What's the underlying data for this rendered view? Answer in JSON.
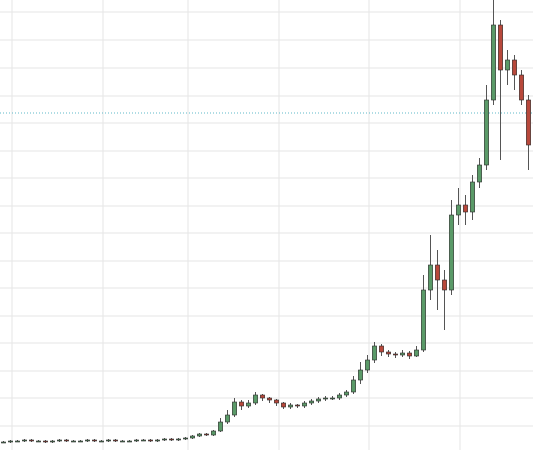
{
  "chart_data": {
    "type": "candlestick",
    "ylim": [
      0,
      450
    ],
    "up_color": "#5a9a68",
    "down_color": "#b8483b",
    "outline_color": "#2b2b2b",
    "price_line": 337,
    "price_line_color": "#5fb8c8",
    "open": [
      8,
      8,
      9,
      9,
      10,
      9,
      9,
      8,
      9,
      10,
      9,
      9,
      9,
      10,
      9,
      9,
      10,
      9,
      9,
      9,
      10,
      10,
      9,
      10,
      11,
      10,
      11,
      12,
      14,
      16,
      15,
      19,
      28,
      35,
      48,
      44,
      47,
      55,
      52,
      50,
      47,
      43,
      45,
      44,
      47,
      49,
      51,
      52,
      52,
      55,
      58,
      70,
      80,
      90,
      104,
      98,
      96,
      95,
      97,
      94,
      100,
      160,
      185,
      170,
      160,
      235,
      245,
      238,
      268,
      285,
      350,
      425,
      380,
      390,
      375,
      350
    ],
    "high": [
      9,
      10,
      10,
      11,
      11,
      10,
      10,
      10,
      11,
      11,
      10,
      10,
      11,
      11,
      10,
      11,
      11,
      10,
      10,
      11,
      11,
      11,
      11,
      12,
      12,
      12,
      13,
      15,
      17,
      17,
      20,
      32,
      40,
      52,
      50,
      50,
      58,
      56,
      53,
      51,
      48,
      47,
      46,
      49,
      51,
      53,
      54,
      54,
      57,
      60,
      74,
      88,
      95,
      108,
      106,
      100,
      98,
      100,
      99,
      104,
      175,
      215,
      200,
      180,
      250,
      262,
      255,
      275,
      292,
      365,
      450,
      430,
      400,
      395,
      380,
      355
    ],
    "low": [
      7,
      7,
      8,
      8,
      8,
      8,
      7,
      7,
      8,
      8,
      8,
      8,
      8,
      8,
      8,
      8,
      8,
      8,
      8,
      8,
      9,
      8,
      8,
      9,
      9,
      9,
      10,
      11,
      13,
      14,
      14,
      18,
      26,
      33,
      40,
      42,
      45,
      49,
      47,
      44,
      41,
      41,
      42,
      42,
      45,
      47,
      49,
      50,
      50,
      53,
      56,
      66,
      77,
      87,
      94,
      93,
      92,
      93,
      91,
      93,
      98,
      150,
      140,
      120,
      155,
      225,
      225,
      230,
      262,
      280,
      345,
      290,
      365,
      360,
      345,
      280
    ],
    "close": [
      8,
      9,
      9,
      10,
      9,
      9,
      8,
      9,
      10,
      9,
      9,
      9,
      10,
      9,
      9,
      10,
      9,
      9,
      9,
      10,
      10,
      9,
      10,
      11,
      10,
      11,
      12,
      14,
      16,
      15,
      19,
      28,
      35,
      48,
      44,
      47,
      55,
      52,
      50,
      47,
      43,
      45,
      44,
      47,
      49,
      51,
      52,
      52,
      55,
      58,
      70,
      80,
      90,
      104,
      98,
      96,
      95,
      97,
      94,
      100,
      160,
      185,
      170,
      160,
      235,
      245,
      238,
      268,
      285,
      350,
      425,
      380,
      390,
      375,
      350,
      305
    ]
  }
}
